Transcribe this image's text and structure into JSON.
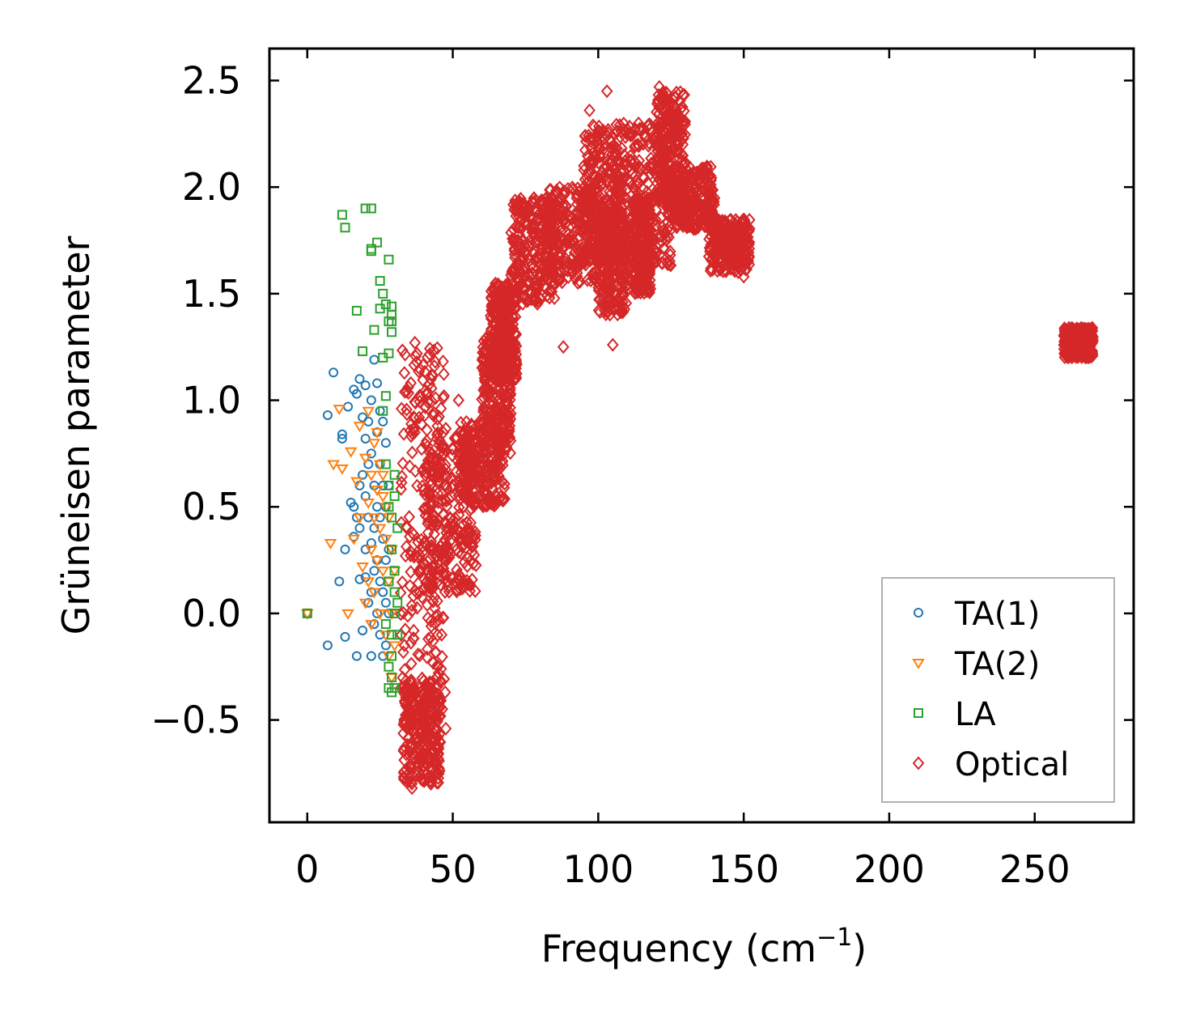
{
  "chart_data": {
    "type": "scatter",
    "title": "",
    "xlabel": "Frequency (cm",
    "xlabel_sup": "−1",
    "xlabel_end": ")",
    "ylabel": "Grüneisen parameter",
    "xlim": [
      -13,
      284
    ],
    "ylim": [
      -0.98,
      2.65
    ],
    "xticks": [
      0,
      50,
      100,
      150,
      200,
      250
    ],
    "xtick_labels": [
      "0",
      "50",
      "100",
      "150",
      "200",
      "250"
    ],
    "yticks": [
      -0.5,
      0.0,
      0.5,
      1.0,
      1.5,
      2.0,
      2.5
    ],
    "ytick_labels": [
      "−0.5",
      "0.0",
      "0.5",
      "1.0",
      "1.5",
      "2.0",
      "2.5"
    ],
    "grid": false,
    "legend_position": "bottom-right",
    "series": [
      {
        "name": "TA(1)",
        "color": "#1f77b4",
        "marker": "circle",
        "points": [
          [
            0,
            0.0
          ],
          [
            7,
            -0.15
          ],
          [
            7,
            0.93
          ],
          [
            9,
            1.13
          ],
          [
            11,
            0.15
          ],
          [
            12,
            0.84
          ],
          [
            12,
            0.82
          ],
          [
            13,
            -0.11
          ],
          [
            13,
            0.3
          ],
          [
            14,
            0.97
          ],
          [
            15,
            0.52
          ],
          [
            16,
            0.5
          ],
          [
            16,
            0.36
          ],
          [
            16,
            1.05
          ],
          [
            17,
            -0.2
          ],
          [
            17,
            0.45
          ],
          [
            17,
            1.03
          ],
          [
            18,
            0.6
          ],
          [
            18,
            0.4
          ],
          [
            18,
            0.16
          ],
          [
            18,
            1.1
          ],
          [
            19,
            -0.08
          ],
          [
            19,
            0.65
          ],
          [
            19,
            0.92
          ],
          [
            20,
            0.82
          ],
          [
            20,
            0.55
          ],
          [
            20,
            0.3
          ],
          [
            20,
            0.17
          ],
          [
            20,
            1.07
          ],
          [
            21,
            0.7
          ],
          [
            21,
            0.45
          ],
          [
            21,
            0.05
          ],
          [
            21,
            0.9
          ],
          [
            22,
            -0.2
          ],
          [
            22,
            0.75
          ],
          [
            22,
            0.33
          ],
          [
            22,
            0.1
          ],
          [
            22,
            1.0
          ],
          [
            23,
            0.6
          ],
          [
            23,
            0.4
          ],
          [
            23,
            0.2
          ],
          [
            23,
            -0.05
          ],
          [
            23,
            1.19
          ],
          [
            24,
            0.85
          ],
          [
            24,
            0.5
          ],
          [
            24,
            0.25
          ],
          [
            24,
            0.0
          ],
          [
            24,
            1.08
          ],
          [
            25,
            0.7
          ],
          [
            25,
            0.45
          ],
          [
            25,
            0.15
          ],
          [
            25,
            -0.1
          ],
          [
            25,
            0.95
          ],
          [
            26,
            0.9
          ],
          [
            26,
            0.6
          ],
          [
            26,
            0.35
          ],
          [
            26,
            0.1
          ],
          [
            26,
            -0.2
          ],
          [
            27,
            0.8
          ],
          [
            27,
            0.5
          ],
          [
            27,
            0.25
          ],
          [
            27,
            0.05
          ],
          [
            27,
            -0.15
          ],
          [
            28,
            0.6
          ],
          [
            28,
            0.3
          ],
          [
            28,
            0.0
          ]
        ]
      },
      {
        "name": "TA(2)",
        "color": "#ff7f0e",
        "marker": "triangle-down",
        "points": [
          [
            0,
            0.0
          ],
          [
            8,
            0.33
          ],
          [
            9,
            0.7
          ],
          [
            11,
            0.96
          ],
          [
            12,
            0.68
          ],
          [
            14,
            0.0
          ],
          [
            15,
            0.76
          ],
          [
            16,
            0.35
          ],
          [
            17,
            0.62
          ],
          [
            18,
            0.88
          ],
          [
            18,
            0.45
          ],
          [
            19,
            0.22
          ],
          [
            20,
            0.73
          ],
          [
            20,
            0.05
          ],
          [
            21,
            0.95
          ],
          [
            21,
            0.52
          ],
          [
            21,
            0.15
          ],
          [
            22,
            0.65
          ],
          [
            22,
            0.3
          ],
          [
            22,
            -0.05
          ],
          [
            23,
            0.8
          ],
          [
            23,
            0.45
          ],
          [
            23,
            0.1
          ],
          [
            24,
            0.58
          ],
          [
            24,
            0.25
          ],
          [
            24,
            0.85
          ],
          [
            25,
            0.4
          ],
          [
            25,
            0.0
          ],
          [
            25,
            0.7
          ],
          [
            26,
            0.55
          ],
          [
            26,
            0.2
          ],
          [
            26,
            0.65
          ],
          [
            27,
            0.35
          ],
          [
            27,
            -0.1
          ],
          [
            27,
            0.5
          ],
          [
            28,
            0.15
          ],
          [
            28,
            -0.2
          ],
          [
            28,
            0.45
          ],
          [
            29,
            0.3
          ],
          [
            29,
            0.0
          ],
          [
            29,
            -0.3
          ],
          [
            30,
            0.2
          ],
          [
            30,
            -0.15
          ]
        ]
      },
      {
        "name": "LA",
        "color": "#2ca02c",
        "marker": "square",
        "points": [
          [
            0,
            0.0
          ],
          [
            12,
            1.87
          ],
          [
            13,
            1.81
          ],
          [
            17,
            1.42
          ],
          [
            19,
            1.23
          ],
          [
            20,
            1.9
          ],
          [
            22,
            1.9
          ],
          [
            22,
            1.71
          ],
          [
            22,
            1.7
          ],
          [
            23,
            1.33
          ],
          [
            24,
            1.74
          ],
          [
            25,
            1.56
          ],
          [
            25,
            1.43
          ],
          [
            26,
            1.5
          ],
          [
            26,
            1.2
          ],
          [
            27,
            1.45
          ],
          [
            27,
            1.02
          ],
          [
            28,
            1.66
          ],
          [
            28,
            1.37
          ],
          [
            28,
            1.22
          ],
          [
            29,
            1.4
          ],
          [
            29,
            1.32
          ],
          [
            29,
            1.44
          ],
          [
            29,
            1.37
          ],
          [
            26,
            0.95
          ],
          [
            27,
            0.7
          ],
          [
            28,
            0.6
          ],
          [
            28,
            0.5
          ],
          [
            29,
            0.45
          ],
          [
            29,
            0.3
          ],
          [
            30,
            0.2
          ],
          [
            30,
            0.1
          ],
          [
            30,
            0.0
          ],
          [
            29,
            -0.1
          ],
          [
            29,
            -0.2
          ],
          [
            29,
            -0.3
          ],
          [
            29,
            -0.37
          ],
          [
            28,
            -0.35
          ],
          [
            28,
            -0.25
          ],
          [
            30,
            -0.35
          ],
          [
            30,
            0.55
          ],
          [
            31,
            0.4
          ],
          [
            31,
            0.05
          ],
          [
            31,
            -0.1
          ],
          [
            28,
            0.15
          ],
          [
            27,
            -0.05
          ],
          [
            30,
            0.65
          ]
        ]
      },
      {
        "name": "Optical",
        "color": "#d62728",
        "marker": "diamond",
        "outliers": [
          [
            36,
            -0.82
          ],
          [
            35,
            -0.75
          ],
          [
            46,
            -0.26
          ],
          [
            52,
            1.0
          ],
          [
            105,
            1.26
          ],
          [
            88,
            1.25
          ],
          [
            103,
            2.45
          ],
          [
            121,
            2.47
          ],
          [
            97,
            2.36
          ],
          [
            150,
            1.58
          ],
          [
            84,
            1.92
          ],
          [
            78,
            1.93
          ],
          [
            37,
            1.27
          ],
          [
            44,
            1.18
          ],
          [
            47,
            1.02
          ]
        ],
        "clusters": [
          {
            "x": [
              32,
              48
            ],
            "y": [
              -0.6,
              1.25
            ]
          },
          {
            "x": [
              33,
              46
            ],
            "y": [
              -0.8,
              -0.3
            ]
          },
          {
            "x": [
              40,
              58
            ],
            "y": [
              0.1,
              0.85
            ]
          },
          {
            "x": [
              52,
              68
            ],
            "y": [
              0.5,
              0.9
            ]
          },
          {
            "x": [
              60,
              70
            ],
            "y": [
              0.75,
              1.3
            ]
          },
          {
            "x": [
              63,
              72
            ],
            "y": [
              1.1,
              1.55
            ]
          },
          {
            "x": [
              70,
              85
            ],
            "y": [
              1.45,
              1.95
            ]
          },
          {
            "x": [
              82,
              100
            ],
            "y": [
              1.55,
              2.0
            ]
          },
          {
            "x": [
              95,
              108
            ],
            "y": [
              1.65,
              2.3
            ]
          },
          {
            "x": [
              100,
              110
            ],
            "y": [
              1.4,
              1.9
            ]
          },
          {
            "x": [
              108,
              125
            ],
            "y": [
              1.6,
              2.3
            ]
          },
          {
            "x": [
              112,
              118
            ],
            "y": [
              1.5,
              1.95
            ]
          },
          {
            "x": [
              120,
              130
            ],
            "y": [
              1.9,
              2.45
            ]
          },
          {
            "x": [
              125,
              140
            ],
            "y": [
              1.8,
              2.1
            ]
          },
          {
            "x": [
              138,
              152
            ],
            "y": [
              1.6,
              1.85
            ]
          },
          {
            "x": [
              260,
              270
            ],
            "y": [
              1.2,
              1.34
            ]
          }
        ],
        "density_per_cluster": 260
      }
    ]
  }
}
